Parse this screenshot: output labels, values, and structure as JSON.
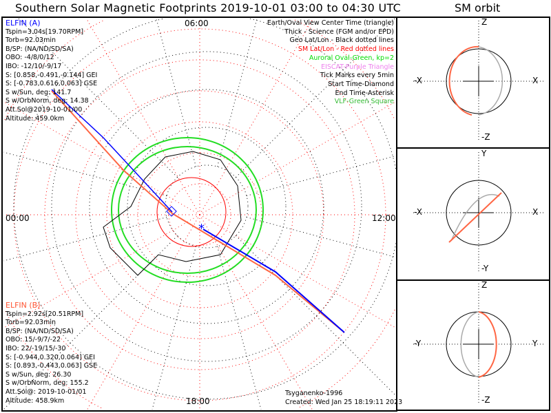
{
  "title": "Southern Solar Magnetic Footprints 2019-10-01 03:00 to 04:30 UTC",
  "orbit_title": "SM orbit",
  "elfin_a": {
    "name": "ELFIN (A)",
    "color": "#0000ff",
    "lines": [
      "Tspin=3.04s[19.70RPM]",
      "Torb=92.03min",
      "B/SP: (NA/ND/SD/SA)",
      "OBO: -4/8/0/12",
      "IBO: -12/10/-9/17",
      "S: [0.858,-0.491,-0.144] GEI",
      "S: [-0.783,0.616,0.063] GSE",
      "S w/Sun, deg: 141.7",
      "S w/OrbNorm, deg: 14.38",
      "Att.Sol@2019-10-01/00",
      "Altitude: 459.0km"
    ]
  },
  "elfin_b": {
    "name": "ELFIN (B)",
    "color": "#ff5533",
    "lines": [
      "Tspin=2.92s[20.51RPM]",
      "Torb=92.03min",
      "B/SP: (NA/ND/SD/SA)",
      "OBO: 15/-9/7/-22",
      "IBO: 22/-19/15/-30",
      "S: [-0.944,0.320,0.064] GEI",
      "S: [0.893,-0.443,0.063] GSE",
      "S w/Sun, deg: 26.30",
      "S w/OrbNorm, deg: 155.2",
      "Att.Sol@: 2019-10-01/01",
      "Altitude: 458.9km"
    ]
  },
  "legend": [
    {
      "text": "Earth/Oval View Center Time (triangle)",
      "color": "#000000"
    },
    {
      "text": "Thick - Science (FGM and/or EPD)",
      "color": "#000000"
    },
    {
      "text": "Geo Lat/Lon - Black dotted lines",
      "color": "#000000"
    },
    {
      "text": "SM Lat/Lon - Red dotted lines",
      "color": "#ff0000"
    },
    {
      "text": "Auroral Oval-Green, kp=2",
      "color": "#00dd00"
    },
    {
      "text": "EISCAT-Purple Triangle",
      "color": "#ee82ee"
    },
    {
      "text": "Tick Marks every 5min",
      "color": "#000000"
    },
    {
      "text": "Start Time-Diamond",
      "color": "#000000"
    },
    {
      "text": "End Time-Asterisk",
      "color": "#000000"
    },
    {
      "text": "VLF-Green Square",
      "color": "#33bb33"
    }
  ],
  "mlt_labels": {
    "top": "06:00",
    "left": "00:00",
    "right": "12:00",
    "bottom": "18:00"
  },
  "footer": {
    "model": "Tsyganenko-1996",
    "created": "Created: Wed Jan 25 18:19:11 2023"
  },
  "orbit_panels": [
    {
      "top": "Z",
      "bottom": "-Z",
      "left": "-X",
      "right": "X"
    },
    {
      "top": "Y",
      "bottom": "-Y",
      "left": "-X",
      "right": "X"
    },
    {
      "top": "Z",
      "bottom": "-Z",
      "left": "-Y",
      "right": "Y"
    }
  ]
}
